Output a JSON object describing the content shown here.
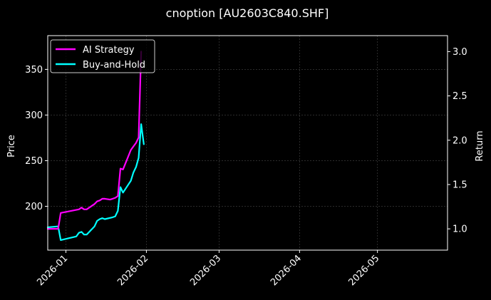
{
  "chart_data": {
    "type": "line",
    "title": "cnoption [AU2603C840.SHF]",
    "ylabel_left": "Price",
    "ylabel_right": "Return",
    "x_axis": {
      "min": "2025-12-25",
      "max": "2026-05-28",
      "tick_dates": [
        "2026-01-01",
        "2026-02-01",
        "2026-03-01",
        "2026-04-01",
        "2026-05-01"
      ],
      "tick_labels": [
        "2026-01",
        "2026-02",
        "2026-03",
        "2026-04",
        "2026-05"
      ]
    },
    "y_left": {
      "min": 152,
      "max": 387,
      "ticks": [
        200,
        250,
        300,
        350
      ]
    },
    "y_right": {
      "min": 0.76,
      "max": 3.18,
      "ticks": [
        1.0,
        1.5,
        2.0,
        2.5,
        3.0
      ]
    },
    "grid": true,
    "legend_position": "top-left",
    "series": [
      {
        "name": "AI Strategy",
        "color": "#ff00ff",
        "axis": "right",
        "points": [
          [
            "2025-12-25",
            1.0
          ],
          [
            "2025-12-29",
            1.0
          ],
          [
            "2025-12-30",
            1.18
          ],
          [
            "2026-01-06",
            1.22
          ],
          [
            "2026-01-07",
            1.24
          ],
          [
            "2026-01-08",
            1.22
          ],
          [
            "2026-01-09",
            1.22
          ],
          [
            "2026-01-12",
            1.28
          ],
          [
            "2026-01-13",
            1.31
          ],
          [
            "2026-01-14",
            1.32
          ],
          [
            "2026-01-15",
            1.34
          ],
          [
            "2026-01-16",
            1.34
          ],
          [
            "2026-01-18",
            1.33
          ],
          [
            "2026-01-19",
            1.34
          ],
          [
            "2026-01-20",
            1.35
          ],
          [
            "2026-01-21",
            1.37
          ],
          [
            "2026-01-22",
            1.68
          ],
          [
            "2026-01-23",
            1.67
          ],
          [
            "2026-01-26",
            1.89
          ],
          [
            "2026-01-27",
            1.93
          ],
          [
            "2026-01-28",
            1.97
          ],
          [
            "2026-01-29",
            2.03
          ],
          [
            "2026-01-30",
            3.0
          ]
        ]
      },
      {
        "name": "Buy-and-Hold",
        "color": "#00ffff",
        "axis": "left",
        "points": [
          [
            "2025-12-25",
            177
          ],
          [
            "2025-12-29",
            178
          ],
          [
            "2025-12-30",
            163
          ],
          [
            "2026-01-05",
            167
          ],
          [
            "2026-01-06",
            171
          ],
          [
            "2026-01-07",
            172
          ],
          [
            "2026-01-08",
            169
          ],
          [
            "2026-01-09",
            169
          ],
          [
            "2026-01-12",
            178
          ],
          [
            "2026-01-13",
            184
          ],
          [
            "2026-01-14",
            186
          ],
          [
            "2026-01-15",
            187
          ],
          [
            "2026-01-16",
            186
          ],
          [
            "2026-01-19",
            188
          ],
          [
            "2026-01-20",
            189
          ],
          [
            "2026-01-21",
            195
          ],
          [
            "2026-01-22",
            221
          ],
          [
            "2026-01-23",
            215
          ],
          [
            "2026-01-26",
            228
          ],
          [
            "2026-01-27",
            237
          ],
          [
            "2026-01-28",
            243
          ],
          [
            "2026-01-29",
            253
          ],
          [
            "2026-01-30",
            290
          ],
          [
            "2026-01-31",
            268
          ]
        ]
      }
    ]
  }
}
